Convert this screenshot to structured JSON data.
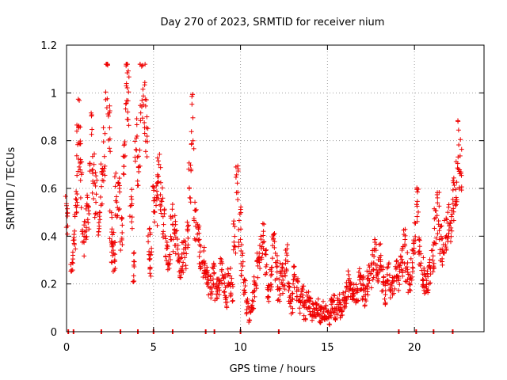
{
  "chart_data": {
    "type": "scatter",
    "title": "Day 270 of 2023, SRMTID for receiver nium",
    "xlabel": "GPS time / hours",
    "ylabel": "SRMTID / TECUs",
    "xlim": [
      0,
      24
    ],
    "ylim": [
      0,
      1.2
    ],
    "xticks": [
      0,
      5,
      10,
      15,
      20
    ],
    "xtick_labels": [
      "0",
      "5",
      "10",
      "15",
      "20"
    ],
    "yticks": [
      0,
      0.2,
      0.4,
      0.6,
      0.8,
      1.0,
      1.2
    ],
    "ytick_labels": [
      "0",
      "0.2",
      "0.4",
      "0.6",
      "0.8",
      "1",
      "1.2"
    ],
    "grid": true,
    "marker": "+",
    "color": "#ee0000",
    "series": [
      {
        "name": "SRMTID",
        "x": [
          0.02,
          0.3,
          0.45,
          0.55,
          0.65,
          0.75,
          0.85,
          0.95,
          1.1,
          1.25,
          1.4,
          1.55,
          1.7,
          1.85,
          2.0,
          2.15,
          2.3,
          2.45,
          2.55,
          2.65,
          2.75,
          2.85,
          3.0,
          3.15,
          3.3,
          3.45,
          3.55,
          3.7,
          3.85,
          4.0,
          4.15,
          4.3,
          4.45,
          4.6,
          4.75,
          4.85,
          5.0,
          5.15,
          5.3,
          5.45,
          5.6,
          5.75,
          5.9,
          6.05,
          6.2,
          6.35,
          6.5,
          6.65,
          6.8,
          6.95,
          7.1,
          7.25,
          7.4,
          7.55,
          7.7,
          7.85,
          8.0,
          8.15,
          8.3,
          8.45,
          8.6,
          8.75,
          8.9,
          9.05,
          9.2,
          9.35,
          9.5,
          9.65,
          9.8,
          9.95,
          10.1,
          10.25,
          10.4,
          10.55,
          10.7,
          10.85,
          11.0,
          11.15,
          11.3,
          11.45,
          11.6,
          11.75,
          11.9,
          12.05,
          12.2,
          12.35,
          12.5,
          12.65,
          12.8,
          12.95,
          13.1,
          13.25,
          13.4,
          13.55,
          13.7,
          13.85,
          14.0,
          14.15,
          14.3,
          14.45,
          14.6,
          14.75,
          14.9,
          15.05,
          15.2,
          15.35,
          15.5,
          15.65,
          15.8,
          15.95,
          16.1,
          16.25,
          16.4,
          16.55,
          16.7,
          16.85,
          17.0,
          17.15,
          17.3,
          17.45,
          17.6,
          17.75,
          17.9,
          18.05,
          18.2,
          18.35,
          18.5,
          18.65,
          18.8,
          18.95,
          19.1,
          19.25,
          19.4,
          19.55,
          19.7,
          19.85,
          20.0,
          20.15,
          20.3,
          20.45,
          20.6,
          20.75,
          20.9,
          21.05,
          21.2,
          21.35,
          21.5,
          21.65,
          21.8,
          21.95,
          22.1,
          22.25,
          22.4,
          22.55,
          22.65
        ],
        "y": [
          0.49,
          0.28,
          0.42,
          0.55,
          0.76,
          0.86,
          0.62,
          0.39,
          0.45,
          0.52,
          0.8,
          0.64,
          0.58,
          0.42,
          0.62,
          0.75,
          1.1,
          0.88,
          0.43,
          0.36,
          0.31,
          0.58,
          0.55,
          0.42,
          0.72,
          1.08,
          0.98,
          0.52,
          0.27,
          0.78,
          0.66,
          1.03,
          0.98,
          0.84,
          0.38,
          0.3,
          0.52,
          0.54,
          0.67,
          0.59,
          0.48,
          0.33,
          0.28,
          0.47,
          0.41,
          0.37,
          0.29,
          0.31,
          0.33,
          0.39,
          0.63,
          0.86,
          0.47,
          0.38,
          0.33,
          0.29,
          0.25,
          0.21,
          0.19,
          0.23,
          0.17,
          0.21,
          0.25,
          0.19,
          0.15,
          0.21,
          0.18,
          0.39,
          0.6,
          0.44,
          0.3,
          0.2,
          0.1,
          0.07,
          0.13,
          0.2,
          0.27,
          0.33,
          0.4,
          0.28,
          0.16,
          0.22,
          0.35,
          0.27,
          0.18,
          0.24,
          0.2,
          0.31,
          0.16,
          0.12,
          0.24,
          0.18,
          0.12,
          0.15,
          0.09,
          0.13,
          0.11,
          0.08,
          0.1,
          0.11,
          0.07,
          0.09,
          0.08,
          0.06,
          0.1,
          0.11,
          0.08,
          0.12,
          0.1,
          0.13,
          0.16,
          0.2,
          0.17,
          0.15,
          0.16,
          0.21,
          0.18,
          0.14,
          0.2,
          0.23,
          0.28,
          0.33,
          0.26,
          0.31,
          0.22,
          0.16,
          0.24,
          0.19,
          0.2,
          0.27,
          0.23,
          0.3,
          0.36,
          0.27,
          0.22,
          0.28,
          0.4,
          0.56,
          0.33,
          0.25,
          0.21,
          0.2,
          0.26,
          0.3,
          0.45,
          0.5,
          0.37,
          0.35,
          0.41,
          0.46,
          0.45,
          0.55,
          0.63,
          0.79,
          0.7
        ]
      }
    ],
    "zero_markers_x": [
      0.1,
      0.4,
      2.0,
      3.1,
      4.1,
      5.0,
      6.1,
      8.0,
      8.5,
      10.0,
      12.2,
      19.1,
      20.1,
      21.1,
      22.2
    ]
  }
}
